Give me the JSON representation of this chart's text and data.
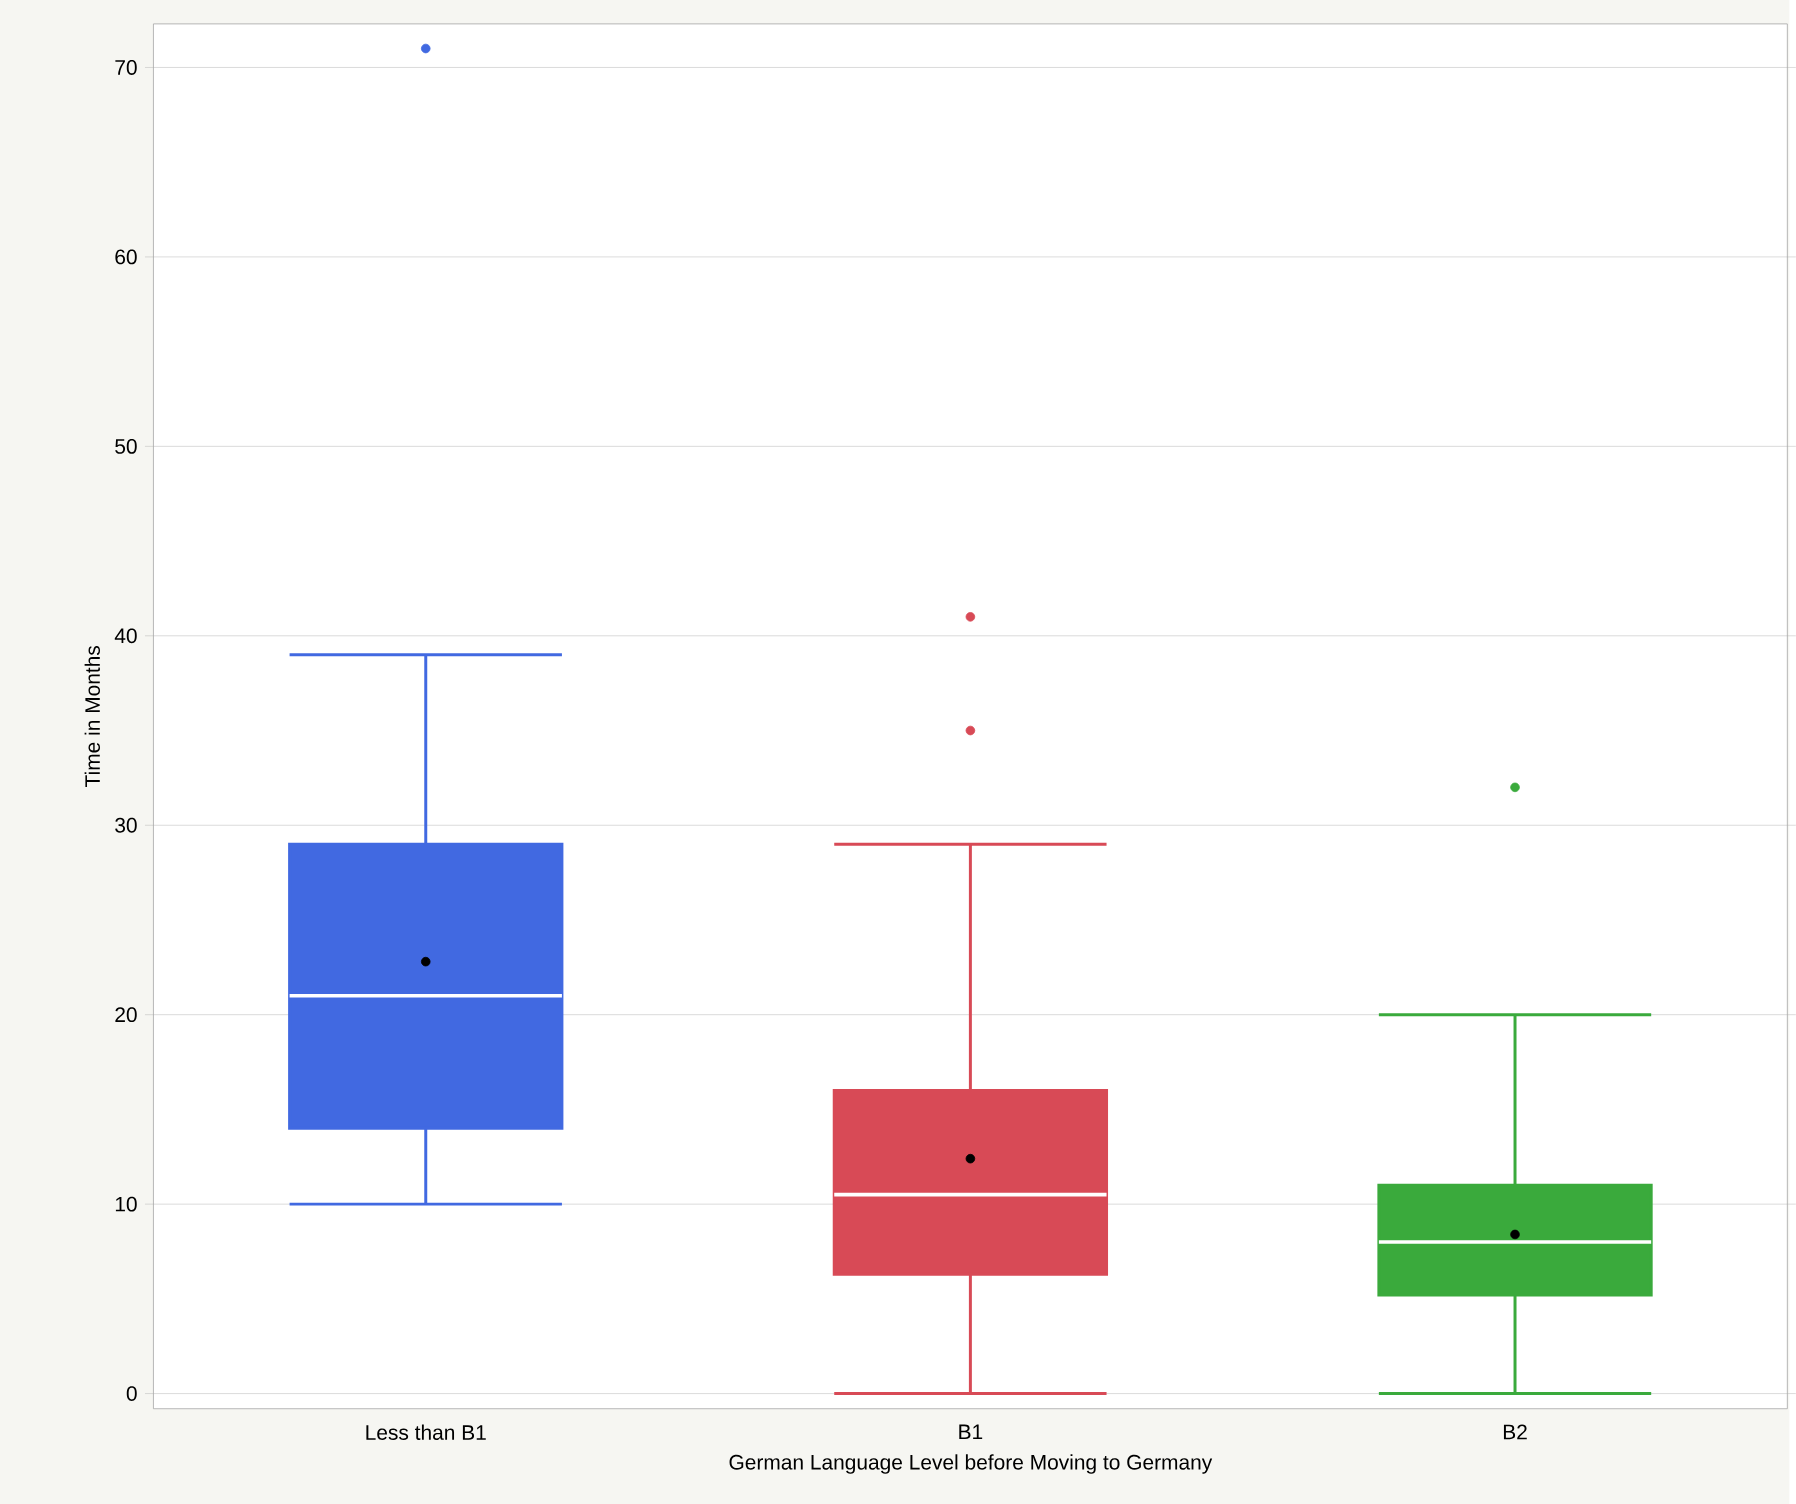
{
  "chart_data": {
    "type": "box",
    "xlabel": "German Language Level before Moving to Germany",
    "ylabel": "Time in Months",
    "categories": [
      "Less than B1",
      "B1",
      "B2"
    ],
    "colors": [
      "#4169e1",
      "#d84a56",
      "#3aaa3c"
    ],
    "boxes": [
      {
        "low": 10,
        "q1": 14,
        "median": 21,
        "q3": 29,
        "high": 39,
        "mean": 22.8,
        "outliers": [
          71
        ]
      },
      {
        "low": 0,
        "q1": 6.3,
        "median": 10.5,
        "q3": 16,
        "high": 29,
        "mean": 12.4,
        "outliers": [
          41,
          35
        ]
      },
      {
        "low": 0,
        "q1": 5.2,
        "median": 8,
        "q3": 11,
        "high": 20,
        "mean": 8.4,
        "outliers": [
          32
        ]
      }
    ],
    "ylim": [
      -0.8,
      72.3
    ],
    "yticks": [
      0,
      10,
      20,
      30,
      40,
      50,
      60,
      70
    ],
    "grid": "y",
    "marker": "circle"
  }
}
